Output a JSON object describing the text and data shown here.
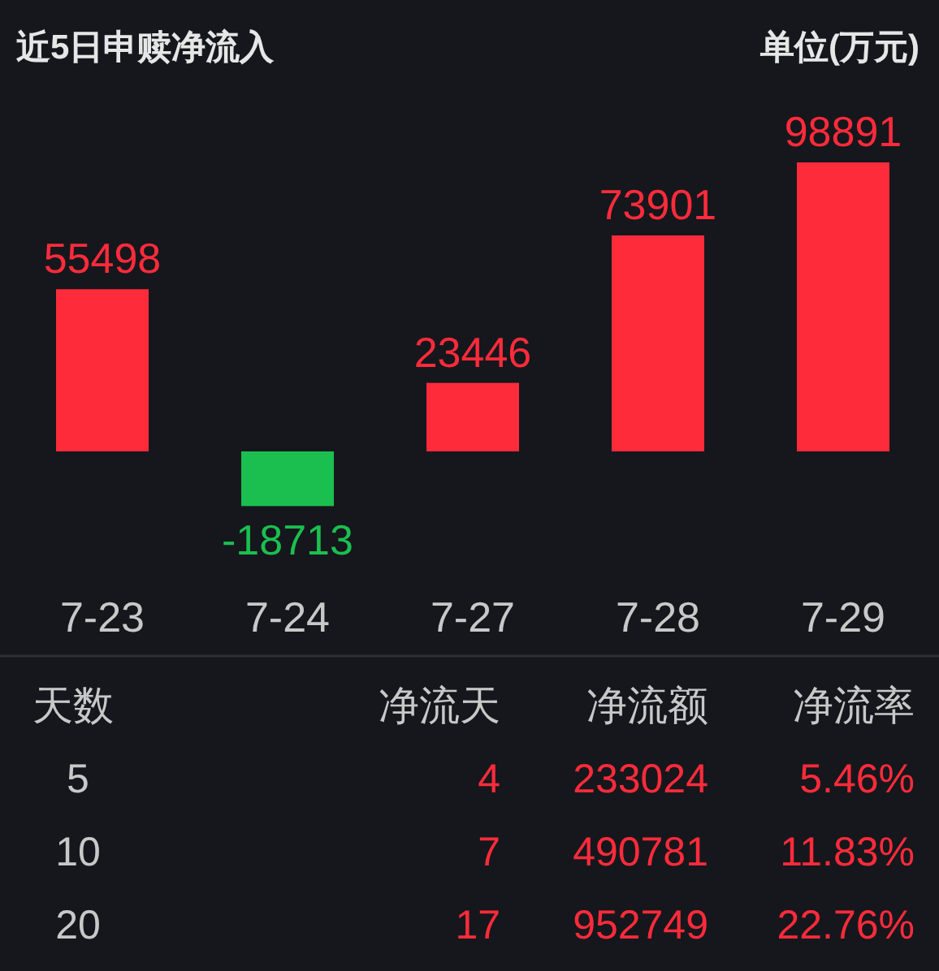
{
  "chart_data": [
    {
      "type": "bar",
      "title": "近5日申赎净流入",
      "subtitle": "单位(万元)",
      "categories": [
        "7-23",
        "7-24",
        "7-27",
        "7-28",
        "7-29"
      ],
      "values": [
        55498,
        -18713,
        23446,
        73901,
        98891
      ],
      "colors": [
        "#fe2b3b",
        "#1bbf4f",
        "#fe2b3b",
        "#fe2b3b",
        "#fe2b3b"
      ],
      "data_labels": true
    },
    {
      "type": "other",
      "categories": [
        "天数",
        "净流天",
        "净流额",
        "净流率"
      ],
      "y_categories": [
        "5",
        "10",
        "20"
      ],
      "cell_labels": [
        [
          "4",
          "233024",
          "5.46%"
        ],
        [
          "7",
          "490781",
          "11.83%"
        ],
        [
          "17",
          "952749",
          "22.76%"
        ]
      ],
      "color": "#fe2b3b"
    }
  ]
}
